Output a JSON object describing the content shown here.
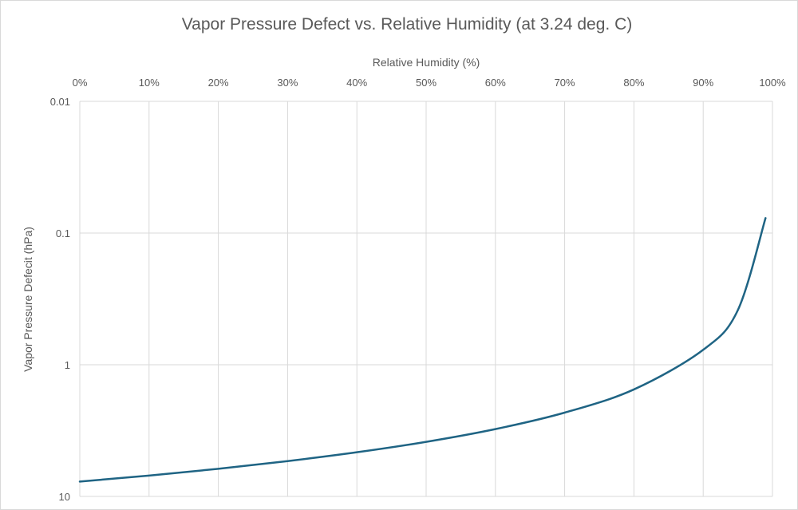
{
  "chart_data": {
    "type": "line",
    "title": "Vapor Pressure Defect vs. Relative Humidity (at 3.24 deg. C)",
    "xlabel": "Relative Humidity (%)",
    "ylabel": "Vapor Pressure Defecit (hPa)",
    "x_axis_position": "top",
    "y_scale": "log",
    "y_reversed": true,
    "xlim": [
      0,
      100
    ],
    "ylim": [
      0.01,
      10
    ],
    "x_ticks": [
      "0%",
      "10%",
      "20%",
      "30%",
      "40%",
      "50%",
      "60%",
      "70%",
      "80%",
      "90%",
      "100%"
    ],
    "y_ticks": [
      "0.01",
      "0.1",
      "1",
      "10"
    ],
    "grid": true,
    "line_color": "#1f6484",
    "x": [
      0,
      10,
      20,
      30,
      40,
      50,
      60,
      70,
      80,
      90,
      95,
      99
    ],
    "y": [
      7.71,
      6.94,
      6.17,
      5.39,
      4.62,
      3.85,
      3.08,
      2.31,
      1.54,
      0.77,
      0.385,
      0.077
    ]
  }
}
